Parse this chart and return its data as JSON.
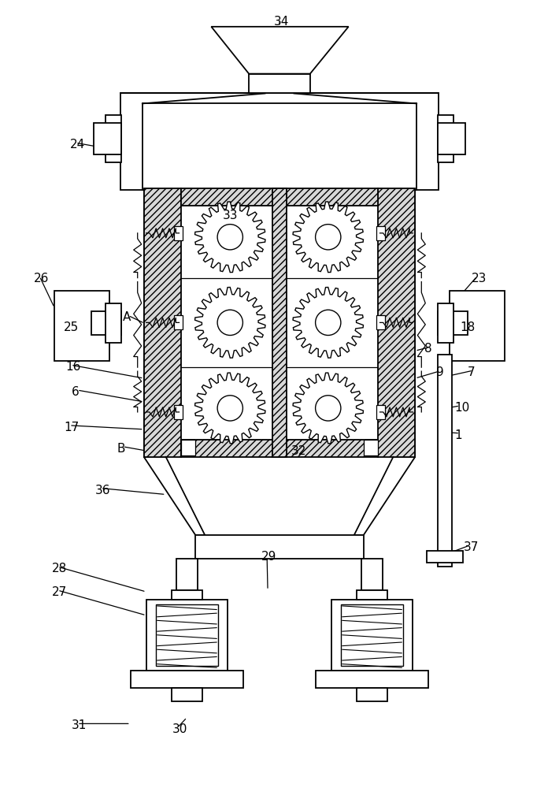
{
  "bg_color": "#ffffff",
  "lc": "#000000",
  "lw": 1.3,
  "figsize": [
    7.1,
    10.0
  ],
  "dpi": 100
}
